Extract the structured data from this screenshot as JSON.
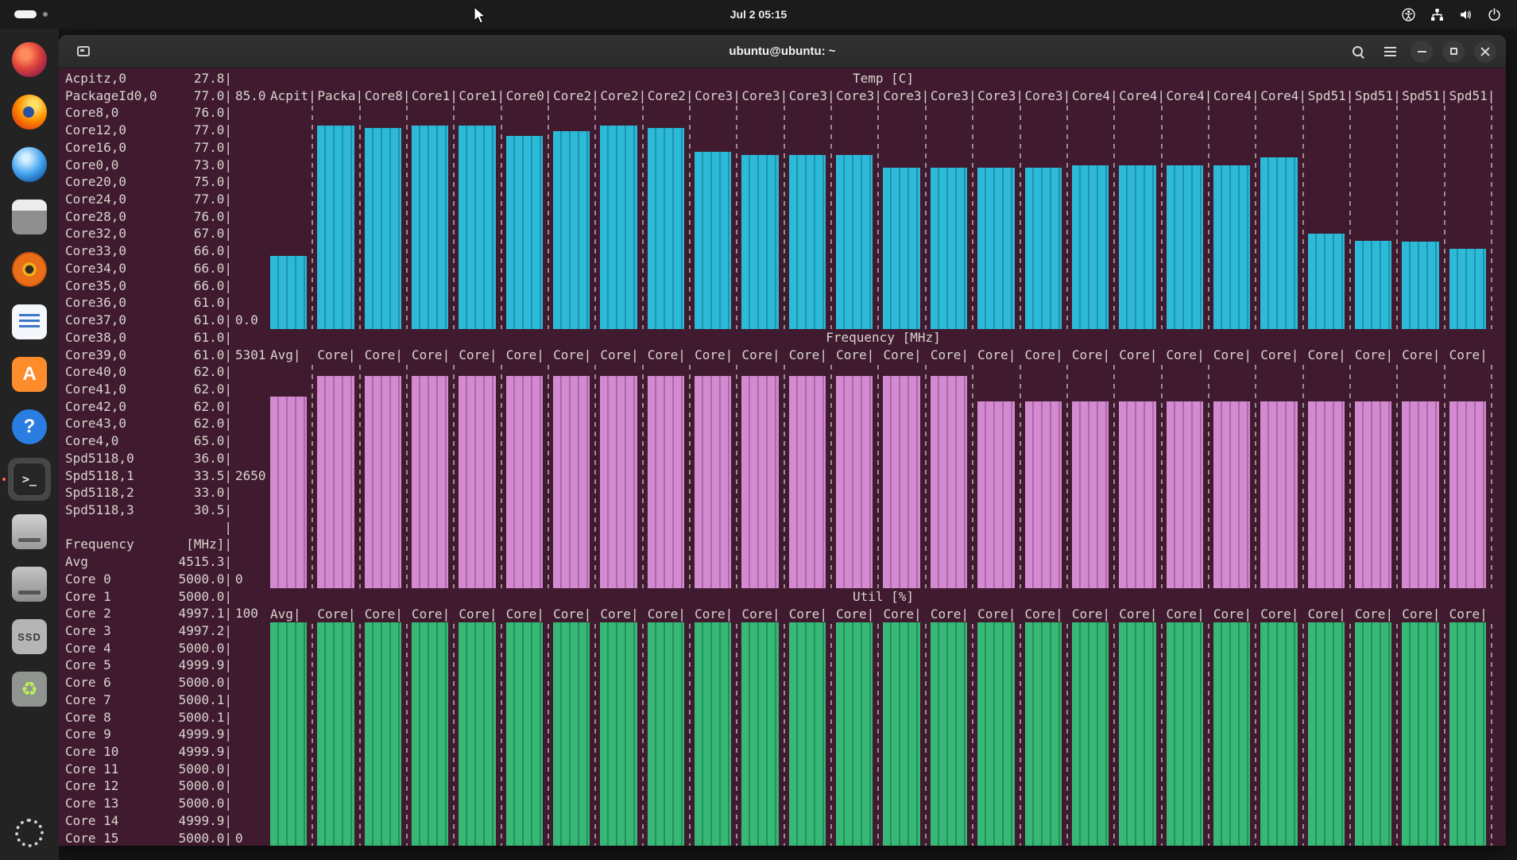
{
  "topbar": {
    "clock": "Jul 2 05:15"
  },
  "terminal": {
    "title": "ubuntu@ubuntu: ~"
  },
  "dock": {
    "ssd_label": "SSD",
    "terminal_glyph": ">_",
    "a_label": "A",
    "help_label": "?",
    "recycle_glyph": "♻"
  },
  "colors": {
    "terminal_bg": "#401b30",
    "temp_bar": "#2cbad8",
    "freq_bar": "#d38ad0",
    "util_bar": "#38b877"
  },
  "left_panel": {
    "rows": [
      {
        "n": "Acpitz,0",
        "v": "27.8",
        "a": ""
      },
      {
        "n": "PackageId0,0",
        "v": "77.0",
        "a": "85.0"
      },
      {
        "n": "Core8,0",
        "v": "76.0",
        "a": ""
      },
      {
        "n": "Core12,0",
        "v": "77.0",
        "a": ""
      },
      {
        "n": "Core16,0",
        "v": "77.0",
        "a": ""
      },
      {
        "n": "Core0,0",
        "v": "73.0",
        "a": ""
      },
      {
        "n": "Core20,0",
        "v": "75.0",
        "a": ""
      },
      {
        "n": "Core24,0",
        "v": "77.0",
        "a": ""
      },
      {
        "n": "Core28,0",
        "v": "76.0",
        "a": ""
      },
      {
        "n": "Core32,0",
        "v": "67.0",
        "a": ""
      },
      {
        "n": "Core33,0",
        "v": "66.0",
        "a": ""
      },
      {
        "n": "Core34,0",
        "v": "66.0",
        "a": ""
      },
      {
        "n": "Core35,0",
        "v": "66.0",
        "a": ""
      },
      {
        "n": "Core36,0",
        "v": "61.0",
        "a": ""
      },
      {
        "n": "Core37,0",
        "v": "61.0",
        "a": "0.0"
      },
      {
        "n": "Core38,0",
        "v": "61.0",
        "a": ""
      },
      {
        "n": "Core39,0",
        "v": "61.0",
        "a": "5301"
      },
      {
        "n": "Core40,0",
        "v": "62.0",
        "a": ""
      },
      {
        "n": "Core41,0",
        "v": "62.0",
        "a": ""
      },
      {
        "n": "Core42,0",
        "v": "62.0",
        "a": ""
      },
      {
        "n": "Core43,0",
        "v": "62.0",
        "a": ""
      },
      {
        "n": "Core4,0",
        "v": "65.0",
        "a": ""
      },
      {
        "n": "Spd5118,0",
        "v": "36.0",
        "a": ""
      },
      {
        "n": "Spd5118,1",
        "v": "33.5",
        "a": "2650"
      },
      {
        "n": "Spd5118,2",
        "v": "33.0",
        "a": ""
      },
      {
        "n": "Spd5118,3",
        "v": "30.5",
        "a": ""
      },
      {
        "n": "",
        "v": "",
        "a": ""
      },
      {
        "n": "Frequency",
        "v": "[MHz]",
        "a": ""
      },
      {
        "n": "Avg",
        "v": "4515.3",
        "a": ""
      },
      {
        "n": "Core 0",
        "v": "5000.0",
        "a": "0"
      },
      {
        "n": "Core 1",
        "v": "5000.0",
        "a": ""
      },
      {
        "n": "Core 2",
        "v": "4997.1",
        "a": "100"
      },
      {
        "n": "Core 3",
        "v": "4997.2",
        "a": ""
      },
      {
        "n": "Core 4",
        "v": "5000.0",
        "a": ""
      },
      {
        "n": "Core 5",
        "v": "4999.9",
        "a": ""
      },
      {
        "n": "Core 6",
        "v": "5000.0",
        "a": ""
      },
      {
        "n": "Core 7",
        "v": "5000.1",
        "a": ""
      },
      {
        "n": "Core 8",
        "v": "5000.1",
        "a": ""
      },
      {
        "n": "Core 9",
        "v": "4999.9",
        "a": ""
      },
      {
        "n": "Core 10",
        "v": "4999.9",
        "a": ""
      },
      {
        "n": "Core 11",
        "v": "5000.0",
        "a": ""
      },
      {
        "n": "Core 12",
        "v": "5000.0",
        "a": ""
      },
      {
        "n": "Core 13",
        "v": "5000.0",
        "a": ""
      },
      {
        "n": "Core 14",
        "v": "4999.9",
        "a": ""
      },
      {
        "n": "Core 15",
        "v": "5000.0",
        "a": "0"
      }
    ]
  },
  "chart_data": [
    {
      "id": "temp",
      "type": "bar",
      "title": "Temp [C]",
      "ylim": [
        0,
        85
      ],
      "axis_labels": {
        "top": "85.0",
        "bottom": "0.0"
      },
      "legend": "none",
      "grid": false,
      "categories": [
        "Acpit",
        "Packa",
        "Core8",
        "Core1",
        "Core1",
        "Core0",
        "Core2",
        "Core2",
        "Core2",
        "Core3",
        "Core3",
        "Core3",
        "Core3",
        "Core3",
        "Core3",
        "Core3",
        "Core3",
        "Core4",
        "Core4",
        "Core4",
        "Core4",
        "Core4",
        "Spd51",
        "Spd51",
        "Spd51",
        "Spd51"
      ],
      "values": [
        27.8,
        77.0,
        76.0,
        77.0,
        77.0,
        73.0,
        75.0,
        77.0,
        76.0,
        67.0,
        66.0,
        66.0,
        66.0,
        61.0,
        61.0,
        61.0,
        61.0,
        62.0,
        62.0,
        62.0,
        62.0,
        65.0,
        36.0,
        33.5,
        33.0,
        30.5
      ],
      "color": "#2cbad8",
      "stripe": "#1d93ad"
    },
    {
      "id": "freq",
      "type": "bar",
      "title": "Frequency [MHz]",
      "ylim": [
        0,
        5301
      ],
      "axis_labels": {
        "top": "5301",
        "mid": "2650",
        "bottom": "0"
      },
      "legend": "none",
      "grid": false,
      "categories": [
        "Avg",
        "Core",
        "Core",
        "Core",
        "Core",
        "Core",
        "Core",
        "Core",
        "Core",
        "Core",
        "Core",
        "Core",
        "Core",
        "Core",
        "Core",
        "Core",
        "Core",
        "Core",
        "Core",
        "Core",
        "Core",
        "Core",
        "Core",
        "Core",
        "Core",
        "Core"
      ],
      "values": [
        4515.3,
        5000,
        5000,
        5000,
        5000,
        5000,
        5000,
        5000,
        5000,
        5000,
        5000,
        5000,
        5000,
        5000,
        5000,
        4400,
        4400,
        4400,
        4400,
        4400,
        4400,
        4400,
        4400,
        4400,
        4400,
        4400
      ],
      "color": "#d38ad0",
      "stripe": "#ad67aa"
    },
    {
      "id": "util",
      "type": "bar",
      "title": "Util [%]",
      "ylim": [
        0,
        100
      ],
      "axis_labels": {
        "top": "100",
        "bottom": "0"
      },
      "legend": "none",
      "grid": false,
      "categories": [
        "Avg",
        "Core",
        "Core",
        "Core",
        "Core",
        "Core",
        "Core",
        "Core",
        "Core",
        "Core",
        "Core",
        "Core",
        "Core",
        "Core",
        "Core",
        "Core",
        "Core",
        "Core",
        "Core",
        "Core",
        "Core",
        "Core",
        "Core",
        "Core",
        "Core",
        "Core"
      ],
      "values": [
        100,
        100,
        100,
        100,
        100,
        100,
        100,
        100,
        100,
        100,
        100,
        100,
        100,
        100,
        100,
        100,
        100,
        100,
        100,
        100,
        100,
        100,
        100,
        100,
        100,
        100
      ],
      "color": "#38b877",
      "stripe": "#249059"
    }
  ]
}
